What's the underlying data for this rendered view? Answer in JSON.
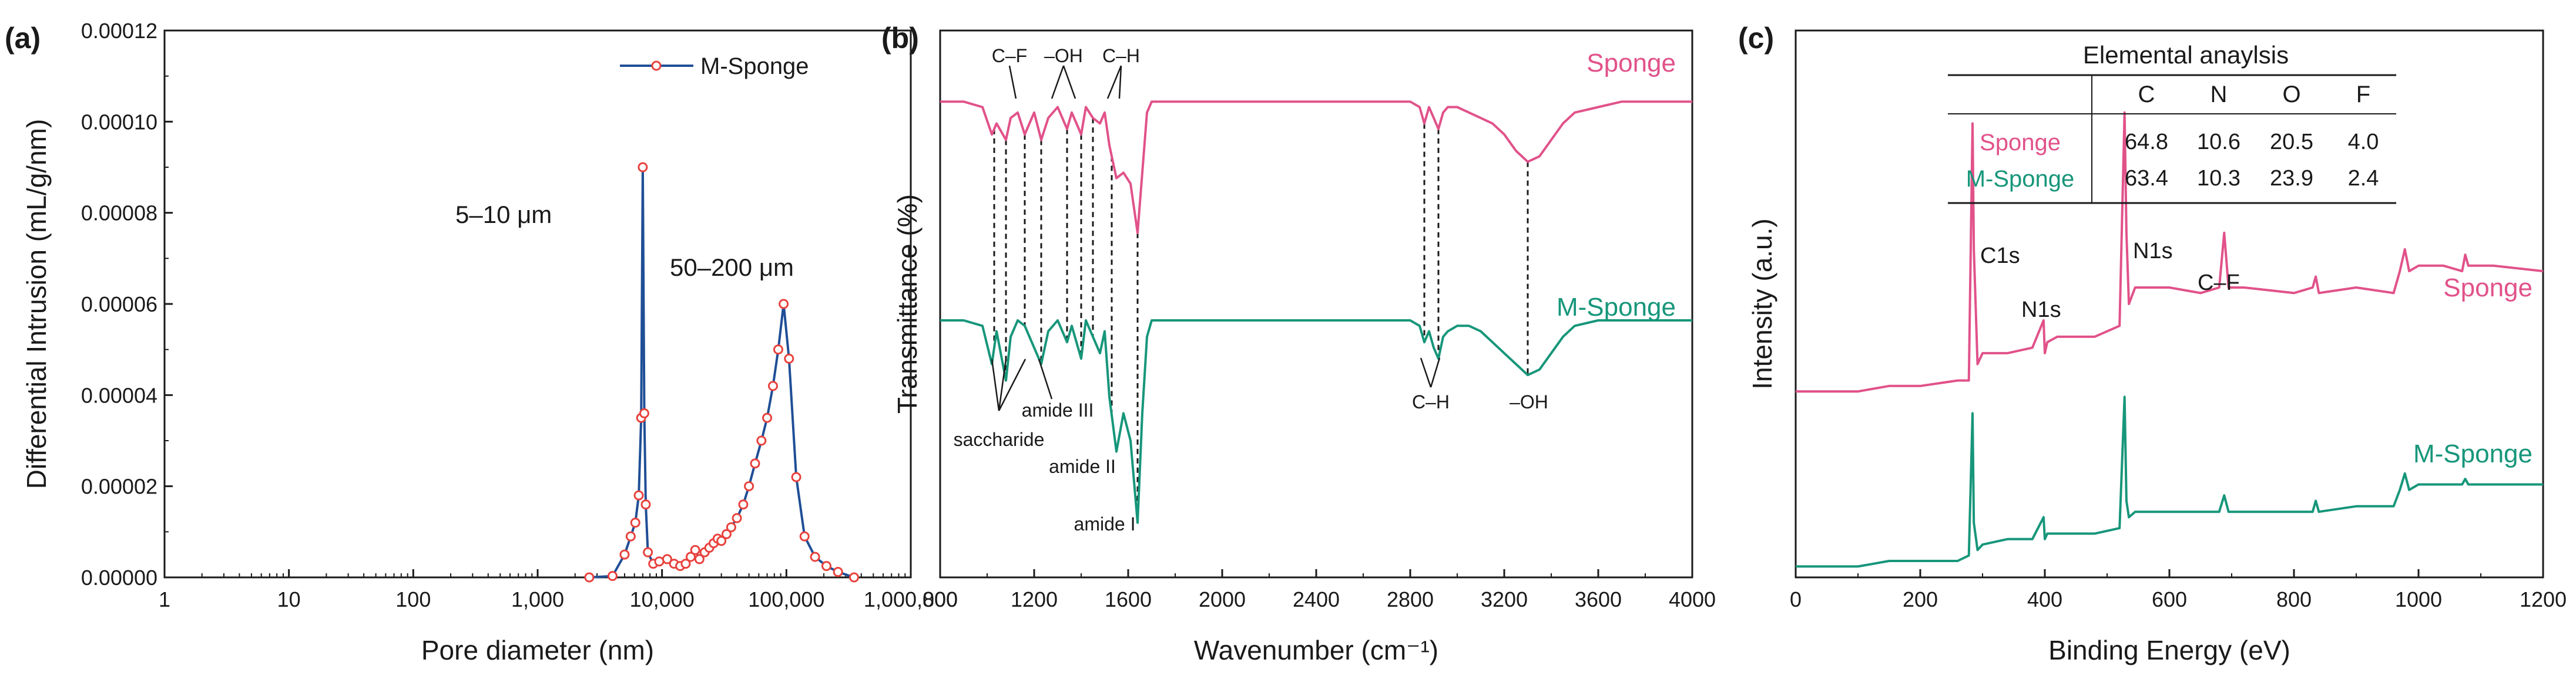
{
  "chart_data": [
    {
      "type": "line",
      "panel_label": "(a)",
      "title": "",
      "xlabel": "Pore diameter (nm)",
      "ylabel": "Differential Intrusion (mL/g/nm)",
      "xscale": "log",
      "xlim": [
        1,
        1000000
      ],
      "ylim": [
        0,
        0.00012
      ],
      "x_tick_values": [
        1,
        10,
        100,
        1000,
        10000,
        100000,
        1000000
      ],
      "x_tick_labels": [
        "1",
        "10",
        "100",
        "1,000",
        "10,000",
        "100,000",
        "1,000,000"
      ],
      "y_tick_values": [
        0,
        2e-05,
        4e-05,
        6e-05,
        8e-05,
        0.0001,
        0.00012
      ],
      "y_tick_labels": [
        "0.00000",
        "0.00002",
        "0.00004",
        "0.00006",
        "0.00008",
        "0.00010",
        "0.00012"
      ],
      "legend": "top-right",
      "series": [
        {
          "name": "M-Sponge",
          "color": "#1f4e96",
          "marker_color": "#e8413c",
          "x": [
            2600,
            4000,
            5000,
            5600,
            6100,
            6500,
            6800,
            7000,
            7200,
            7400,
            7700,
            8500,
            9500,
            11000,
            12500,
            14000,
            15500,
            17000,
            18500,
            20000,
            22000,
            24000,
            26000,
            28000,
            30000,
            33000,
            36000,
            40000,
            45000,
            50000,
            56000,
            63000,
            70000,
            78000,
            86000,
            95000,
            105000,
            120000,
            140000,
            170000,
            210000,
            260000,
            350000
          ],
          "y": [
            0.0,
            3e-07,
            5e-06,
            9e-06,
            1.2e-05,
            1.8e-05,
            3.5e-05,
            9e-05,
            3.6e-05,
            1.6e-05,
            5.5e-06,
            3e-06,
            3.5e-06,
            4e-06,
            3e-06,
            2.5e-06,
            3e-06,
            4.5e-06,
            6e-06,
            4e-06,
            5.5e-06,
            6.5e-06,
            7.5e-06,
            8.5e-06,
            8e-06,
            9.5e-06,
            1.1e-05,
            1.3e-05,
            1.6e-05,
            2e-05,
            2.5e-05,
            3e-05,
            3.5e-05,
            4.2e-05,
            5e-05,
            6e-05,
            4.8e-05,
            2.2e-05,
            9e-06,
            4.5e-06,
            2.5e-06,
            1.2e-06,
            0.0
          ]
        }
      ],
      "annotations": [
        {
          "text": "5–10 μm",
          "x": 3500,
          "y": 8.1e-05
        },
        {
          "text": "50–200 μm",
          "x": 90000,
          "y": 6.4e-05
        }
      ]
    },
    {
      "type": "line",
      "panel_label": "(b)",
      "title": "",
      "xlabel": "Wavenumber (cm⁻¹)",
      "ylabel": "Transmittance (%)",
      "xlim": [
        800,
        4000
      ],
      "ylim": [
        0,
        1
      ],
      "x_tick_values": [
        800,
        1200,
        1600,
        2000,
        2400,
        2800,
        3200,
        3600,
        4000
      ],
      "x_tick_labels": [
        "800",
        "1200",
        "1600",
        "2000",
        "2400",
        "2800",
        "3200",
        "3600",
        "4000"
      ],
      "y_ticks_shown": false,
      "series": [
        {
          "name": "Sponge",
          "color": "#e1528a",
          "x": [
            800,
            900,
            980,
            1020,
            1040,
            1080,
            1100,
            1130,
            1160,
            1200,
            1230,
            1260,
            1300,
            1340,
            1360,
            1400,
            1420,
            1450,
            1480,
            1500,
            1520,
            1550,
            1580,
            1610,
            1640,
            1660,
            1680,
            1700,
            1750,
            1800,
            2000,
            2400,
            2800,
            2840,
            2860,
            2880,
            2900,
            2920,
            2940,
            2960,
            3000,
            3050,
            3100,
            3150,
            3200,
            3250,
            3300,
            3350,
            3400,
            3450,
            3500,
            3600,
            3700,
            3800,
            3900,
            4000
          ],
          "y": [
            0.87,
            0.87,
            0.86,
            0.81,
            0.83,
            0.8,
            0.84,
            0.85,
            0.81,
            0.85,
            0.8,
            0.84,
            0.86,
            0.82,
            0.85,
            0.81,
            0.86,
            0.84,
            0.83,
            0.85,
            0.79,
            0.73,
            0.74,
            0.72,
            0.63,
            0.74,
            0.85,
            0.87,
            0.87,
            0.87,
            0.87,
            0.87,
            0.87,
            0.86,
            0.83,
            0.86,
            0.84,
            0.82,
            0.85,
            0.86,
            0.86,
            0.85,
            0.84,
            0.83,
            0.81,
            0.78,
            0.76,
            0.77,
            0.8,
            0.83,
            0.85,
            0.86,
            0.87,
            0.87,
            0.87,
            0.87
          ]
        },
        {
          "name": "M-Sponge",
          "color": "#17967a",
          "x": [
            800,
            900,
            980,
            1020,
            1040,
            1080,
            1100,
            1130,
            1160,
            1200,
            1230,
            1260,
            1300,
            1340,
            1360,
            1400,
            1420,
            1450,
            1480,
            1500,
            1520,
            1550,
            1580,
            1610,
            1640,
            1660,
            1680,
            1700,
            1750,
            1800,
            2000,
            2400,
            2800,
            2840,
            2860,
            2880,
            2900,
            2920,
            2940,
            2960,
            3000,
            3050,
            3100,
            3150,
            3200,
            3250,
            3300,
            3350,
            3400,
            3450,
            3500,
            3600,
            3700,
            3800,
            3900,
            4000
          ],
          "y": [
            0.47,
            0.47,
            0.46,
            0.39,
            0.45,
            0.36,
            0.44,
            0.47,
            0.46,
            0.42,
            0.39,
            0.45,
            0.47,
            0.43,
            0.46,
            0.4,
            0.47,
            0.44,
            0.41,
            0.45,
            0.33,
            0.23,
            0.3,
            0.25,
            0.1,
            0.3,
            0.44,
            0.47,
            0.47,
            0.47,
            0.47,
            0.47,
            0.47,
            0.46,
            0.43,
            0.45,
            0.42,
            0.4,
            0.44,
            0.45,
            0.46,
            0.46,
            0.45,
            0.43,
            0.41,
            0.39,
            0.37,
            0.38,
            0.41,
            0.44,
            0.46,
            0.47,
            0.47,
            0.47,
            0.47,
            0.47
          ]
        }
      ],
      "series_labels": [
        "Sponge",
        "M-Sponge"
      ],
      "dashed_links_at": [
        1030,
        1080,
        1160,
        1230,
        1340,
        1400,
        1450,
        1530,
        1640,
        2860,
        2920,
        3300
      ],
      "peak_labels_top": [
        "C–F",
        "–OH",
        "C–H"
      ],
      "peak_labels_bottom": [
        "saccharide",
        "amide III",
        "amide II",
        "amide I",
        "C–H",
        "–OH"
      ]
    },
    {
      "type": "line",
      "panel_label": "(c)",
      "title": "",
      "xlabel": "Binding Energy (eV)",
      "ylabel": "Intensity (a.u.)",
      "xlim": [
        0,
        1200
      ],
      "ylim": [
        0,
        1
      ],
      "x_tick_values": [
        0,
        200,
        400,
        600,
        800,
        1000,
        1200
      ],
      "x_tick_labels": [
        "0",
        "200",
        "400",
        "600",
        "800",
        "1000",
        "1200"
      ],
      "y_ticks_shown": false,
      "series": [
        {
          "name": "Sponge",
          "color": "#e1528a",
          "x": [
            0,
            100,
            150,
            200,
            260,
            278,
            284,
            286,
            292,
            300,
            340,
            380,
            398,
            400,
            404,
            420,
            480,
            520,
            528,
            531,
            535,
            545,
            560,
            600,
            650,
            680,
            688,
            695,
            720,
            800,
            830,
            835,
            840,
            900,
            960,
            970,
            978,
            985,
            1000,
            1040,
            1070,
            1075,
            1080,
            1120,
            1200
          ],
          "y": [
            0.34,
            0.34,
            0.35,
            0.35,
            0.36,
            0.36,
            0.83,
            0.6,
            0.39,
            0.41,
            0.41,
            0.42,
            0.47,
            0.41,
            0.43,
            0.44,
            0.44,
            0.46,
            0.85,
            0.63,
            0.5,
            0.53,
            0.53,
            0.53,
            0.52,
            0.53,
            0.63,
            0.53,
            0.53,
            0.52,
            0.53,
            0.55,
            0.52,
            0.53,
            0.52,
            0.56,
            0.6,
            0.56,
            0.57,
            0.57,
            0.56,
            0.59,
            0.57,
            0.57,
            0.56
          ]
        },
        {
          "name": "M-Sponge",
          "color": "#17967a",
          "x": [
            0,
            100,
            150,
            200,
            260,
            278,
            284,
            286,
            292,
            300,
            340,
            380,
            398,
            400,
            404,
            420,
            480,
            520,
            528,
            531,
            535,
            545,
            560,
            600,
            650,
            680,
            688,
            695,
            720,
            800,
            830,
            835,
            840,
            900,
            960,
            970,
            978,
            985,
            1000,
            1040,
            1070,
            1075,
            1080,
            1120,
            1200
          ],
          "y": [
            0.02,
            0.02,
            0.03,
            0.03,
            0.03,
            0.04,
            0.3,
            0.1,
            0.05,
            0.06,
            0.07,
            0.07,
            0.11,
            0.07,
            0.08,
            0.08,
            0.08,
            0.09,
            0.33,
            0.14,
            0.11,
            0.12,
            0.12,
            0.12,
            0.12,
            0.12,
            0.15,
            0.12,
            0.12,
            0.12,
            0.12,
            0.14,
            0.12,
            0.13,
            0.13,
            0.16,
            0.19,
            0.16,
            0.17,
            0.17,
            0.17,
            0.18,
            0.17,
            0.17,
            0.17
          ]
        }
      ],
      "series_labels": [
        "Sponge",
        "M-Sponge"
      ],
      "peak_labels": [
        "C1s",
        "N1s",
        "N1s",
        "C–F"
      ],
      "inset_table": {
        "title": "Elemental anaylsis",
        "columns": [
          "",
          "C",
          "N",
          "O",
          "F"
        ],
        "rows": [
          {
            "name": "Sponge",
            "values": [
              "64.8",
              "10.6",
              "20.5",
              "4.0"
            ]
          },
          {
            "name": "M-Sponge",
            "values": [
              "63.4",
              "10.3",
              "23.9",
              "2.4"
            ]
          }
        ]
      }
    }
  ],
  "colors": {
    "sponge": "#e1528a",
    "m_sponge": "#17967a",
    "line_a": "#1f4e96",
    "marker_a": "#e8413c",
    "axis": "#1a1a1a"
  }
}
